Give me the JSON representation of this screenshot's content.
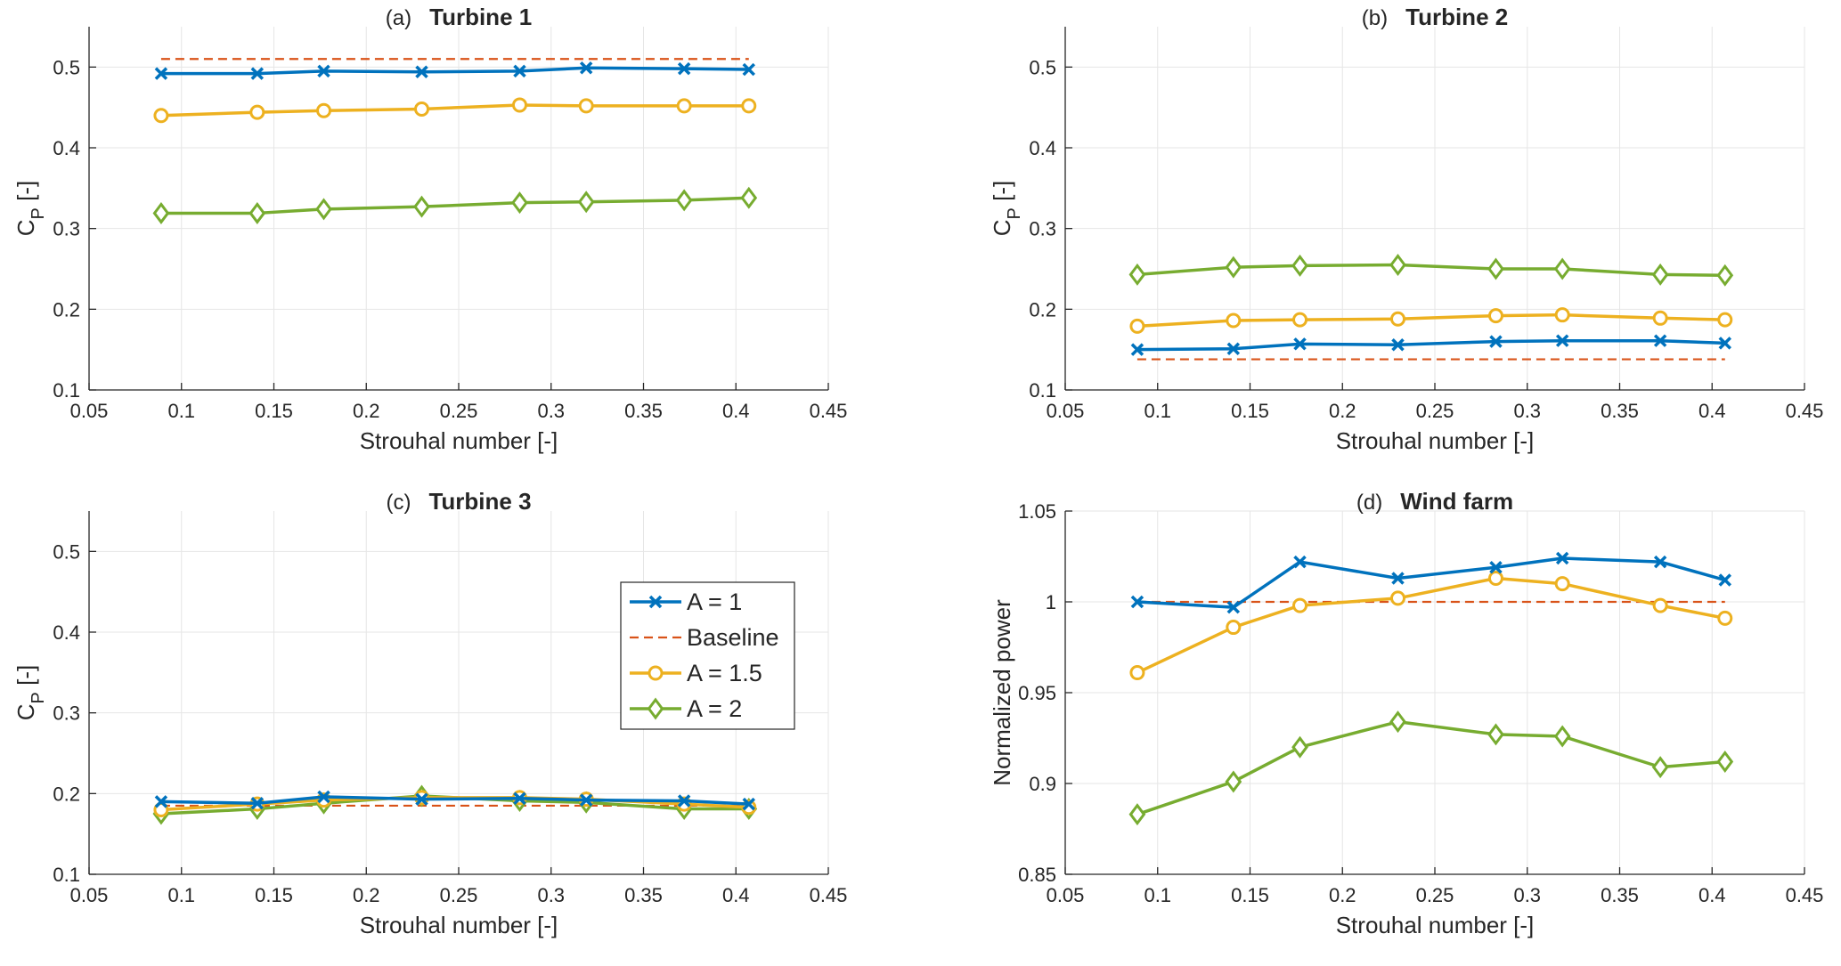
{
  "colors": {
    "a1": "#0072BD",
    "baseline": "#D95319",
    "a15": "#EDB120",
    "a2": "#77AC30",
    "grid": "#e6e6e6",
    "axis": "#262626"
  },
  "legend": {
    "a1": "A = 1",
    "baseline": "Baseline",
    "a15": "A = 1.5",
    "a2": "A = 2"
  },
  "chart_data": [
    {
      "type": "line",
      "tag": "(a)",
      "title": "Turbine 1",
      "xlabel": "Strouhal number [-]",
      "ylabel_main": "C",
      "ylabel_sub": "P",
      "ylabel_rest": " [-]",
      "xlim": [
        0.05,
        0.45
      ],
      "ylim": [
        0.1,
        0.55
      ],
      "xticks": [
        0.05,
        0.1,
        0.15,
        0.2,
        0.25,
        0.3,
        0.35,
        0.4,
        0.45
      ],
      "xtick_labels": [
        "0.05",
        "0.1",
        "0.15",
        "0.2",
        "0.25",
        "0.3",
        "0.35",
        "0.4",
        "0.45"
      ],
      "yticks": [
        0.1,
        0.2,
        0.3,
        0.4,
        0.5
      ],
      "ytick_labels": [
        "0.1",
        "0.2",
        "0.3",
        "0.4",
        "0.5"
      ],
      "x": [
        0.089,
        0.141,
        0.177,
        0.23,
        0.283,
        0.319,
        0.372,
        0.407
      ],
      "baseline": 0.51,
      "series": [
        {
          "name": "A = 1",
          "key": "a1",
          "marker": "x",
          "values": [
            0.492,
            0.492,
            0.495,
            0.494,
            0.495,
            0.499,
            0.498,
            0.497
          ]
        },
        {
          "name": "A = 1.5",
          "key": "a15",
          "marker": "o",
          "values": [
            0.44,
            0.444,
            0.446,
            0.448,
            0.453,
            0.452,
            0.452,
            0.452
          ]
        },
        {
          "name": "A = 2",
          "key": "a2",
          "marker": "d",
          "values": [
            0.319,
            0.319,
            0.324,
            0.327,
            0.332,
            0.333,
            0.335,
            0.338
          ]
        }
      ]
    },
    {
      "type": "line",
      "tag": "(b)",
      "title": "Turbine 2",
      "xlabel": "Strouhal number [-]",
      "ylabel_main": "C",
      "ylabel_sub": "P",
      "ylabel_rest": " [-]",
      "xlim": [
        0.05,
        0.45
      ],
      "ylim": [
        0.1,
        0.55
      ],
      "xticks": [
        0.05,
        0.1,
        0.15,
        0.2,
        0.25,
        0.3,
        0.35,
        0.4,
        0.45
      ],
      "xtick_labels": [
        "0.05",
        "0.1",
        "0.15",
        "0.2",
        "0.25",
        "0.3",
        "0.35",
        "0.4",
        "0.45"
      ],
      "yticks": [
        0.1,
        0.2,
        0.3,
        0.4,
        0.5
      ],
      "ytick_labels": [
        "0.1",
        "0.2",
        "0.3",
        "0.4",
        "0.5"
      ],
      "x": [
        0.089,
        0.141,
        0.177,
        0.23,
        0.283,
        0.319,
        0.372,
        0.407
      ],
      "baseline": 0.138,
      "series": [
        {
          "name": "A = 1",
          "key": "a1",
          "marker": "x",
          "values": [
            0.15,
            0.151,
            0.157,
            0.156,
            0.16,
            0.161,
            0.161,
            0.158
          ]
        },
        {
          "name": "A = 1.5",
          "key": "a15",
          "marker": "o",
          "values": [
            0.179,
            0.186,
            0.187,
            0.188,
            0.192,
            0.193,
            0.189,
            0.187
          ]
        },
        {
          "name": "A = 2",
          "key": "a2",
          "marker": "d",
          "values": [
            0.243,
            0.252,
            0.254,
            0.255,
            0.25,
            0.25,
            0.243,
            0.242
          ]
        }
      ]
    },
    {
      "type": "line",
      "tag": "(c)",
      "title": "Turbine 3",
      "xlabel": "Strouhal number [-]",
      "ylabel_main": "C",
      "ylabel_sub": "P",
      "ylabel_rest": " [-]",
      "xlim": [
        0.05,
        0.45
      ],
      "ylim": [
        0.1,
        0.55
      ],
      "xticks": [
        0.05,
        0.1,
        0.15,
        0.2,
        0.25,
        0.3,
        0.35,
        0.4,
        0.45
      ],
      "xtick_labels": [
        "0.05",
        "0.1",
        "0.15",
        "0.2",
        "0.25",
        "0.3",
        "0.35",
        "0.4",
        "0.45"
      ],
      "yticks": [
        0.1,
        0.2,
        0.3,
        0.4,
        0.5
      ],
      "ytick_labels": [
        "0.1",
        "0.2",
        "0.3",
        "0.4",
        "0.5"
      ],
      "x": [
        0.089,
        0.141,
        0.177,
        0.23,
        0.283,
        0.319,
        0.372,
        0.407
      ],
      "baseline": 0.185,
      "legend": true,
      "series": [
        {
          "name": "A = 1",
          "key": "a1",
          "marker": "x",
          "values": [
            0.19,
            0.188,
            0.196,
            0.193,
            0.194,
            0.192,
            0.191,
            0.187
          ]
        },
        {
          "name": "A = 1.5",
          "key": "a15",
          "marker": "o",
          "values": [
            0.18,
            0.187,
            0.192,
            0.195,
            0.195,
            0.193,
            0.187,
            0.183
          ]
        },
        {
          "name": "A = 2",
          "key": "a2",
          "marker": "d",
          "values": [
            0.175,
            0.181,
            0.188,
            0.197,
            0.191,
            0.189,
            0.181,
            0.181
          ]
        }
      ]
    },
    {
      "type": "line",
      "tag": "(d)",
      "title": "Wind farm",
      "xlabel": "Strouhal number [-]",
      "ylabel_main": "Normalized power",
      "ylabel_sub": "",
      "ylabel_rest": "",
      "xlim": [
        0.05,
        0.45
      ],
      "ylim": [
        0.85,
        1.05
      ],
      "xticks": [
        0.05,
        0.1,
        0.15,
        0.2,
        0.25,
        0.3,
        0.35,
        0.4,
        0.45
      ],
      "xtick_labels": [
        "0.05",
        "0.1",
        "0.15",
        "0.2",
        "0.25",
        "0.3",
        "0.35",
        "0.4",
        "0.45"
      ],
      "yticks": [
        0.85,
        0.9,
        0.95,
        1.0,
        1.05
      ],
      "ytick_labels": [
        "0.85",
        "0.9",
        "0.95",
        "1",
        "1.05"
      ],
      "x": [
        0.089,
        0.141,
        0.177,
        0.23,
        0.283,
        0.319,
        0.372,
        0.407
      ],
      "baseline": 1.0,
      "series": [
        {
          "name": "A = 1",
          "key": "a1",
          "marker": "x",
          "values": [
            1.0,
            0.997,
            1.022,
            1.013,
            1.019,
            1.024,
            1.022,
            1.012
          ]
        },
        {
          "name": "A = 1.5",
          "key": "a15",
          "marker": "o",
          "values": [
            0.961,
            0.986,
            0.998,
            1.002,
            1.013,
            1.01,
            0.998,
            0.991
          ]
        },
        {
          "name": "A = 2",
          "key": "a2",
          "marker": "d",
          "values": [
            0.883,
            0.901,
            0.92,
            0.934,
            0.927,
            0.926,
            0.909,
            0.912
          ]
        }
      ]
    }
  ]
}
